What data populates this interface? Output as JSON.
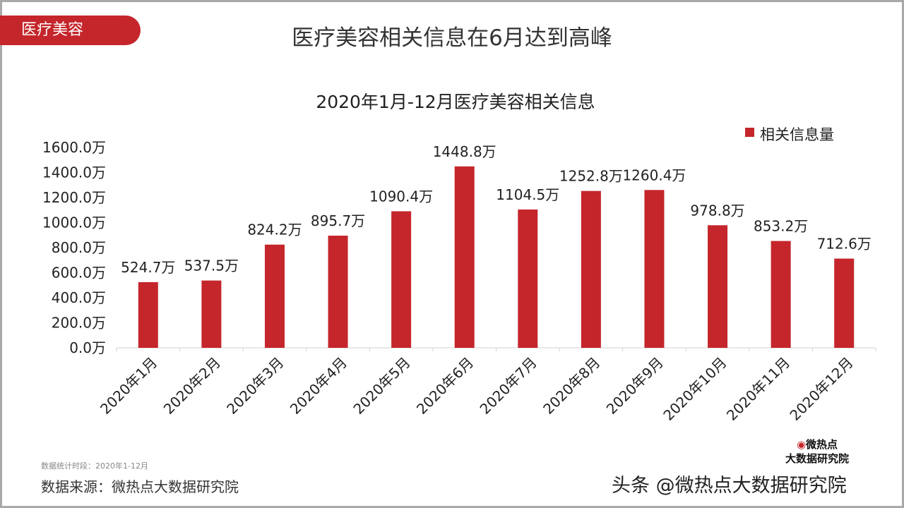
{
  "tag": "医疗美容",
  "headline": "医疗美容相关信息在6月达到高峰",
  "chart_data": {
    "type": "bar",
    "title": "2020年1月-12月医疗美容相关信息",
    "categories": [
      "2020年1月",
      "2020年2月",
      "2020年3月",
      "2020年4月",
      "2020年5月",
      "2020年6月",
      "2020年7月",
      "2020年8月",
      "2020年9月",
      "2020年10月",
      "2020年11月",
      "2020年12月"
    ],
    "series": [
      {
        "name": "相关信息量",
        "values": [
          524.7,
          537.5,
          824.2,
          895.7,
          1090.4,
          1448.8,
          1104.5,
          1252.8,
          1260.4,
          978.8,
          853.2,
          712.6
        ],
        "color": "#c4262b"
      }
    ],
    "data_labels": [
      "524.7万",
      "537.5万",
      "824.2万",
      "895.7万",
      "1090.4万",
      "1448.8万",
      "1104.5万",
      "1252.8万",
      "1260.4万",
      "978.8万",
      "853.2万",
      "712.6万"
    ],
    "yticks": [
      "0.0万",
      "200.0万",
      "400.0万",
      "600.0万",
      "800.0万",
      "1000.0万",
      "1200.0万",
      "1400.0万",
      "1600.0万"
    ],
    "ylim": [
      0,
      1600
    ],
    "grid": false,
    "legend_position": "top-right"
  },
  "footer": {
    "period_note": "数据统计时段：2020年1-12月",
    "source": "数据来源：微热点大数据研究院",
    "watermark": "头条 @微热点大数据研究院",
    "logo_line1": "微热点",
    "logo_line2": "大数据研究院"
  }
}
